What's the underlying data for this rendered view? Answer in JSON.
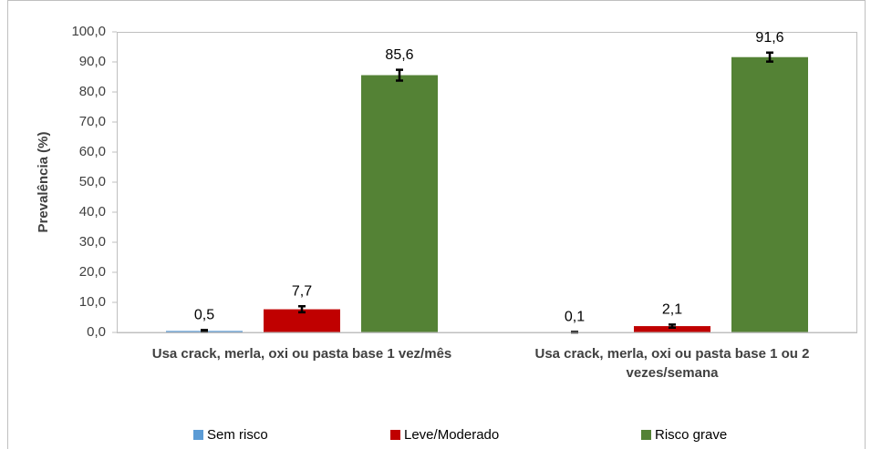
{
  "chart_data": {
    "type": "bar",
    "y_label": "Prevalência (%)",
    "categories": [
      "Usa crack, merla, oxi ou pasta base 1 vez/mês",
      "Usa crack, merla, oxi ou pasta base 1 ou 2 vezes/semana"
    ],
    "series": [
      {
        "name": "Sem risco",
        "color": "#5b9bd5",
        "values": [
          0.5,
          0.1
        ],
        "value_labels": [
          "0,5",
          "0,1"
        ],
        "errors": [
          0.3,
          0.1
        ]
      },
      {
        "name": "Leve/Moderado",
        "color": "#c00000",
        "values": [
          7.7,
          2.1
        ],
        "value_labels": [
          "7,7",
          "2,1"
        ],
        "errors": [
          1.0,
          0.5
        ]
      },
      {
        "name": "Risco grave",
        "color": "#548235",
        "values": [
          85.6,
          91.6
        ],
        "value_labels": [
          "85,6",
          "91,6"
        ],
        "errors": [
          1.8,
          1.5
        ]
      }
    ],
    "ylim": [
      0,
      100
    ],
    "yticks": [
      {
        "value": 0,
        "label": "0,0"
      },
      {
        "value": 10,
        "label": "10,0"
      },
      {
        "value": 20,
        "label": "20,0"
      },
      {
        "value": 30,
        "label": "30,0"
      },
      {
        "value": 40,
        "label": "40,0"
      },
      {
        "value": 50,
        "label": "50,0"
      },
      {
        "value": 60,
        "label": "60,0"
      },
      {
        "value": 70,
        "label": "70,0"
      },
      {
        "value": 80,
        "label": "80,0"
      },
      {
        "value": 90,
        "label": "90,0"
      },
      {
        "value": 100,
        "label": "100,0"
      }
    ],
    "legend": "bottom"
  }
}
